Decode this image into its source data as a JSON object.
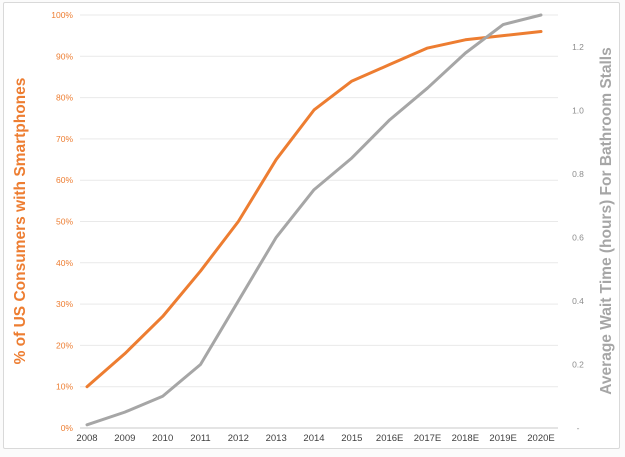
{
  "chart_data": {
    "type": "line",
    "title": "",
    "legend": "none",
    "grid": true,
    "categories": [
      "2008",
      "2009",
      "2010",
      "2011",
      "2012",
      "2013",
      "2014",
      "2015",
      "2016E",
      "2017E",
      "2018E",
      "2019E",
      "2020E"
    ],
    "series": [
      {
        "name": "% of US Consumers with Smartphones",
        "axis": "left",
        "color": "#ED7D31",
        "values": [
          10,
          18,
          27,
          38,
          50,
          65,
          77,
          84,
          88,
          92,
          94,
          95,
          96
        ]
      },
      {
        "name": "Average Wait Time (hours) For Bathroom Stalls",
        "axis": "right",
        "color": "#A6A6A6",
        "values": [
          0.01,
          0.05,
          0.1,
          0.2,
          0.4,
          0.6,
          0.75,
          0.85,
          0.97,
          1.07,
          1.18,
          1.27,
          1.3
        ]
      }
    ],
    "left_axis": {
      "title": "% of US Consumers with Smartphones",
      "min": 0,
      "max": 100,
      "tick_values": [
        0,
        10,
        20,
        30,
        40,
        50,
        60,
        70,
        80,
        90,
        100
      ],
      "tick_labels": [
        "0%",
        "10%",
        "20%",
        "30%",
        "40%",
        "50%",
        "60%",
        "70%",
        "80%",
        "90%",
        "100%"
      ],
      "color": "#ED7D31"
    },
    "right_axis": {
      "title": "Average Wait Time (hours) For Bathroom Stalls",
      "min": 0,
      "max": 1.3,
      "tick_values": [
        0,
        0.2,
        0.4,
        0.6,
        0.8,
        1.0,
        1.2
      ],
      "tick_labels": [
        "-",
        "0.2",
        "0.4",
        "0.6",
        "0.8",
        "1.0",
        "1.2"
      ],
      "color": "#A6A6A6"
    },
    "x_axis": {
      "label_color": "#3f3f3f"
    },
    "style_colors": {
      "gridline": "#e9e9e9",
      "baseline": "#c9c9c9",
      "right_tick_label": "#8c8c8c",
      "frame_border": "#d9d9d9",
      "background": "#ffffff"
    }
  }
}
